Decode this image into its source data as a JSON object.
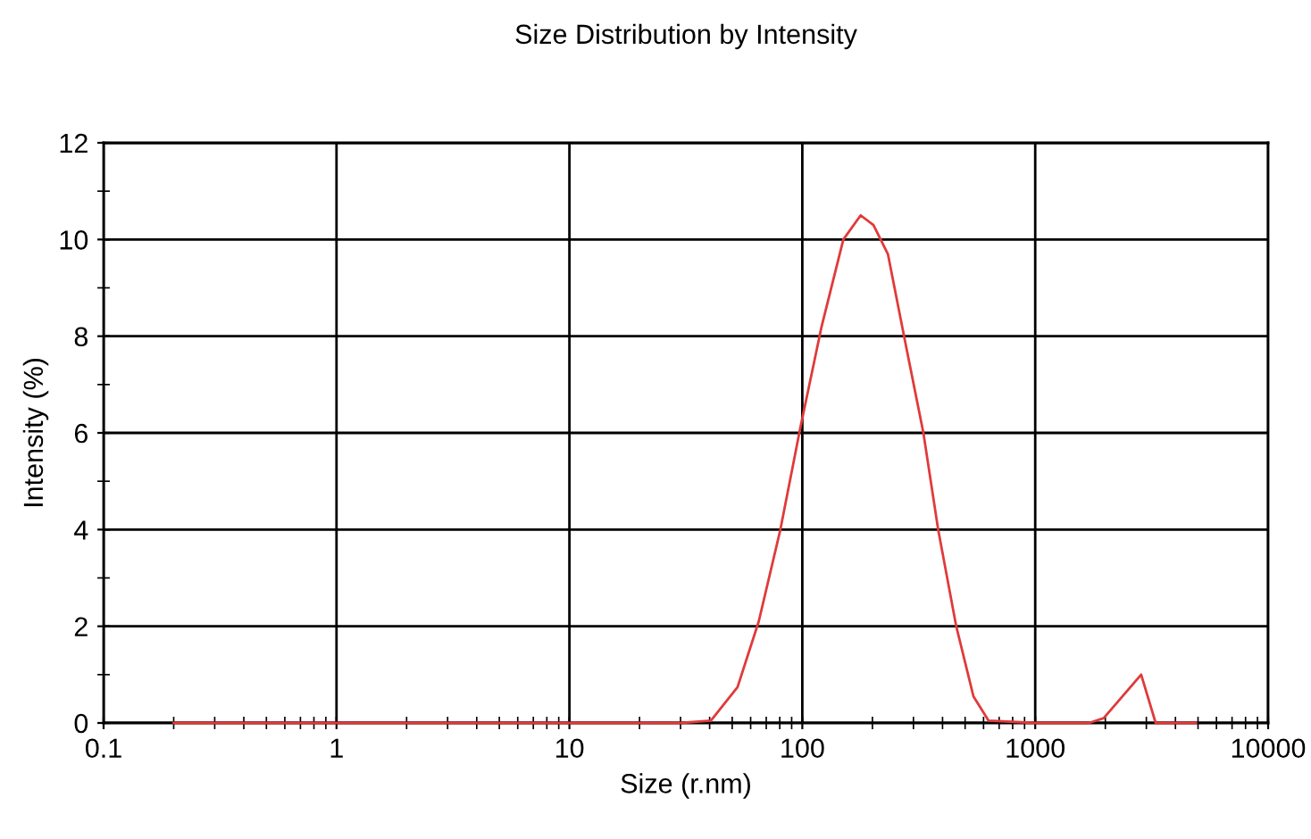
{
  "chart_data": {
    "type": "line",
    "title": "Size Distribution by Intensity",
    "xlabel": "Size (r.nm)",
    "ylabel": "Intensity (%)",
    "log": "x",
    "xlim": [
      0.1,
      10000
    ],
    "xticks": [
      0.1,
      1,
      10,
      100,
      1000,
      10000
    ],
    "ylim": [
      0,
      12
    ],
    "yticks": [
      0,
      2,
      4,
      6,
      8,
      10,
      12
    ],
    "grid": true,
    "legend": false,
    "marker": "none",
    "line_style": "solid",
    "series": [
      {
        "color": "#e03a3a",
        "x": [
          0.2,
          1,
          10,
          30,
          40.5,
          52.7,
          65,
          80.5,
          98,
          121,
          150,
          178,
          202,
          233,
          276,
          331,
          383,
          458,
          543,
          630,
          1000,
          1700,
          1967,
          2850,
          3290,
          4900
        ],
        "values": [
          0,
          0,
          0,
          0,
          0.05,
          0.74,
          2.1,
          4.0,
          6.1,
          8.2,
          10.0,
          10.5,
          10.3,
          9.7,
          7.9,
          6.0,
          4.0,
          2.0,
          0.55,
          0.05,
          0,
          0,
          0.1,
          1.0,
          0,
          0
        ]
      }
    ]
  }
}
